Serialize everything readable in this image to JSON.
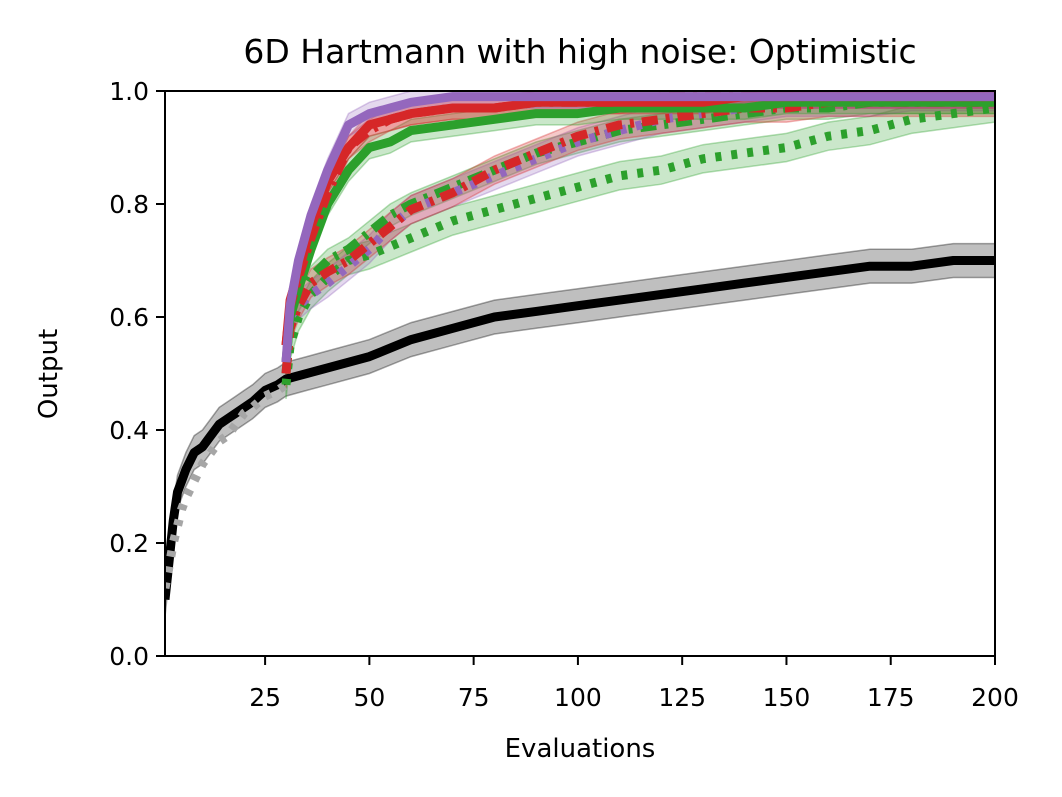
{
  "chart_data": {
    "type": "line",
    "title": "6D Hartmann with high noise: Optimistic",
    "xlabel": "Evaluations",
    "ylabel": "Output",
    "xlim": [
      1,
      200
    ],
    "ylim": [
      0,
      1
    ],
    "xticks": [
      "25",
      "50",
      "75",
      "100",
      "125",
      "150",
      "175",
      "200"
    ],
    "yticks": [
      "0.0",
      "0.2",
      "0.4",
      "0.6",
      "0.8",
      "1.0"
    ],
    "grid": false,
    "series": [
      {
        "color": "#000000",
        "dash": "solid",
        "band": 0.03,
        "x": [
          1,
          2,
          3,
          4,
          5,
          6,
          8,
          10,
          12,
          14,
          16,
          18,
          20,
          22,
          25,
          28,
          30,
          35,
          40,
          50,
          60,
          70,
          80,
          90,
          100,
          110,
          120,
          130,
          140,
          150,
          160,
          170,
          180,
          190,
          200
        ],
        "y": [
          0.1,
          0.17,
          0.24,
          0.29,
          0.31,
          0.33,
          0.36,
          0.37,
          0.39,
          0.41,
          0.42,
          0.43,
          0.44,
          0.45,
          0.47,
          0.48,
          0.49,
          0.5,
          0.51,
          0.53,
          0.56,
          0.58,
          0.6,
          0.61,
          0.62,
          0.63,
          0.64,
          0.65,
          0.66,
          0.67,
          0.68,
          0.69,
          0.69,
          0.7,
          0.7
        ]
      },
      {
        "color": "#a6a6a6",
        "dash": "dotted",
        "band": 0,
        "x": [
          1,
          2,
          3,
          4,
          5,
          6,
          8,
          10,
          12,
          14,
          16,
          18,
          20,
          22,
          25,
          28,
          30
        ],
        "y": [
          0.12,
          0.16,
          0.2,
          0.23,
          0.26,
          0.28,
          0.31,
          0.34,
          0.36,
          0.38,
          0.39,
          0.41,
          0.43,
          0.44,
          0.46,
          0.47,
          0.48
        ]
      },
      {
        "color": "#2ca02c",
        "dash": "dotted",
        "band": 0.025,
        "x": [
          30,
          31,
          33,
          36,
          40,
          45,
          50,
          60,
          70,
          80,
          90,
          100,
          110,
          120,
          130,
          140,
          150,
          160,
          170,
          180,
          190,
          200
        ],
        "y": [
          0.48,
          0.55,
          0.6,
          0.64,
          0.67,
          0.7,
          0.71,
          0.74,
          0.77,
          0.79,
          0.81,
          0.83,
          0.85,
          0.86,
          0.88,
          0.89,
          0.9,
          0.92,
          0.93,
          0.95,
          0.96,
          0.97
        ]
      },
      {
        "color": "#2ca02c",
        "dash": "dashdot",
        "band": 0.02,
        "x": [
          30,
          31,
          33,
          36,
          40,
          45,
          50,
          55,
          60,
          70,
          80,
          90,
          100,
          110,
          120,
          130,
          140,
          150,
          160,
          170,
          180,
          190,
          200
        ],
        "y": [
          0.5,
          0.58,
          0.63,
          0.67,
          0.7,
          0.72,
          0.75,
          0.78,
          0.8,
          0.83,
          0.86,
          0.89,
          0.91,
          0.93,
          0.94,
          0.95,
          0.96,
          0.97,
          0.97,
          0.98,
          0.98,
          0.98,
          0.98
        ]
      },
      {
        "color": "#9467bd",
        "dash": "dotted",
        "band": 0.025,
        "x": [
          30,
          31,
          33,
          36,
          40,
          45,
          50,
          55,
          60,
          70,
          80,
          90,
          100,
          110,
          120,
          130,
          140,
          150,
          160,
          170,
          180,
          190,
          200
        ],
        "y": [
          0.52,
          0.6,
          0.62,
          0.64,
          0.66,
          0.69,
          0.72,
          0.76,
          0.79,
          0.82,
          0.85,
          0.88,
          0.91,
          0.93,
          0.95,
          0.96,
          0.97,
          0.98,
          0.98,
          0.98,
          0.99,
          0.99,
          0.99
        ]
      },
      {
        "color": "#d62728",
        "dash": "dashdot",
        "band": 0.025,
        "x": [
          30,
          31,
          33,
          36,
          40,
          45,
          50,
          55,
          60,
          70,
          80,
          90,
          100,
          110,
          120,
          130,
          140,
          150,
          160,
          170,
          180,
          190,
          200
        ],
        "y": [
          0.5,
          0.58,
          0.62,
          0.66,
          0.68,
          0.7,
          0.73,
          0.76,
          0.79,
          0.82,
          0.86,
          0.89,
          0.92,
          0.94,
          0.95,
          0.96,
          0.97,
          0.97,
          0.98,
          0.98,
          0.98,
          0.98,
          0.98
        ]
      },
      {
        "color": "#2ca02c",
        "dash": "solid",
        "band": 0.02,
        "x": [
          30,
          31,
          33,
          36,
          40,
          45,
          50,
          55,
          60,
          70,
          80,
          90,
          100,
          110,
          120,
          130,
          140,
          150,
          160,
          170,
          180,
          190,
          200
        ],
        "y": [
          0.52,
          0.6,
          0.65,
          0.72,
          0.8,
          0.86,
          0.9,
          0.91,
          0.93,
          0.94,
          0.95,
          0.96,
          0.96,
          0.97,
          0.97,
          0.97,
          0.97,
          0.98,
          0.98,
          0.98,
          0.98,
          0.98,
          0.98
        ]
      },
      {
        "color": "#d62728",
        "dash": "dashdot",
        "band": 0.02,
        "x": [
          30,
          31,
          33,
          36,
          40,
          45,
          50,
          55,
          60,
          70,
          80,
          90,
          100,
          110,
          120,
          130,
          140,
          150,
          160,
          170,
          180,
          190,
          200
        ],
        "y": [
          0.55,
          0.62,
          0.67,
          0.74,
          0.82,
          0.9,
          0.93,
          0.95,
          0.96,
          0.97,
          0.97,
          0.98,
          0.98,
          0.98,
          0.99,
          0.99,
          0.99,
          0.99,
          0.99,
          0.99,
          0.99,
          0.99,
          0.99
        ]
      },
      {
        "color": "#d62728",
        "dash": "solid",
        "band": 0.02,
        "x": [
          30,
          31,
          33,
          36,
          40,
          45,
          50,
          55,
          60,
          70,
          80,
          90,
          100,
          110,
          120,
          130,
          140,
          150,
          160,
          170,
          180,
          190,
          200
        ],
        "y": [
          0.55,
          0.63,
          0.68,
          0.76,
          0.84,
          0.9,
          0.94,
          0.95,
          0.96,
          0.97,
          0.97,
          0.98,
          0.98,
          0.98,
          0.98,
          0.98,
          0.99,
          0.99,
          0.99,
          0.99,
          0.99,
          0.99,
          0.99
        ]
      },
      {
        "color": "#9467bd",
        "dash": "solid",
        "band": 0.02,
        "x": [
          30,
          31,
          33,
          36,
          40,
          45,
          50,
          55,
          60,
          70,
          80,
          90,
          100,
          110,
          120,
          130,
          140,
          150,
          160,
          170,
          180,
          190,
          200
        ],
        "y": [
          0.52,
          0.62,
          0.7,
          0.78,
          0.86,
          0.94,
          0.96,
          0.97,
          0.98,
          0.99,
          0.99,
          0.99,
          0.99,
          0.99,
          0.99,
          0.99,
          0.99,
          0.99,
          0.99,
          0.99,
          0.99,
          0.99,
          0.99
        ]
      }
    ]
  }
}
